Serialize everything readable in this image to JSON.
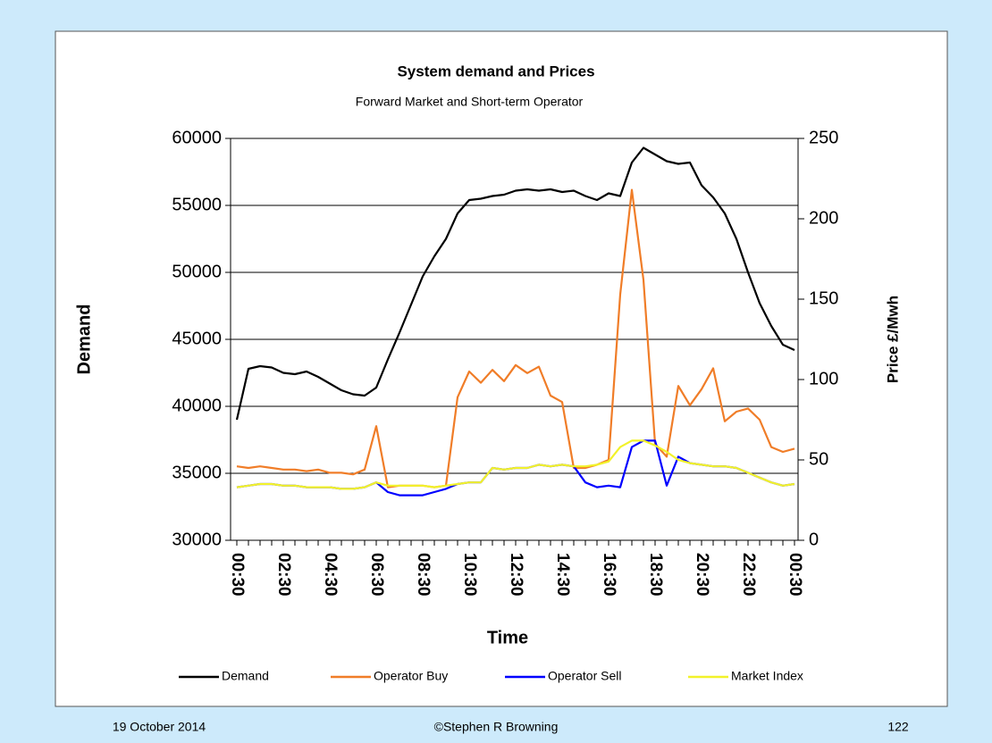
{
  "chart_data": {
    "type": "line",
    "title": "System demand and Prices",
    "subtitle": "Forward Market and Short-term Operator",
    "x_label": "Time",
    "y_label": "Demand",
    "y2_label": "Price £/Mwh",
    "categories": [
      "00:30",
      null,
      null,
      null,
      "02:30",
      null,
      null,
      null,
      "04:30",
      null,
      null,
      null,
      "06:30",
      null,
      null,
      null,
      "08:30",
      null,
      null,
      null,
      "10:30",
      null,
      null,
      null,
      "12:30",
      null,
      null,
      null,
      "14:30",
      null,
      null,
      null,
      "16:30",
      null,
      null,
      null,
      "18:30",
      null,
      null,
      null,
      "20:30",
      null,
      null,
      null,
      "22:30",
      null,
      null,
      null,
      "00:30"
    ],
    "series": [
      {
        "name": "Demand",
        "color": "#000000",
        "values": [
          39000,
          42800,
          43000,
          42900,
          42500,
          42400,
          42600,
          42200,
          41700,
          41200,
          40900,
          40800,
          41400,
          43500,
          45500,
          47600,
          49700,
          51200,
          52500,
          54400,
          55400,
          55500,
          55700,
          55800,
          56100,
          56200,
          56100,
          56200,
          56000,
          56100,
          55700,
          55400,
          55900,
          55700,
          58200,
          59300,
          58800,
          58300,
          58100,
          58200,
          56500,
          55600,
          54400,
          52500,
          50000,
          47700,
          46000,
          44600,
          44200
        ]
      },
      {
        "name": "Operator Buy",
        "color": "#f07d28",
        "axis": "y2",
        "values": [
          46,
          45,
          46,
          45,
          44,
          44,
          43,
          44,
          42,
          42,
          41,
          44,
          71,
          33,
          34,
          34,
          34,
          33,
          34,
          89,
          105,
          98,
          106,
          99,
          109,
          104,
          108,
          90,
          86,
          45,
          45,
          47,
          50,
          153,
          218,
          162,
          60,
          52,
          96,
          84,
          94,
          107,
          74,
          80,
          82,
          75,
          58,
          55,
          57
        ]
      },
      {
        "name": "Operator Sell",
        "color": "#0000ff",
        "axis": "y2",
        "values": [
          33,
          34,
          35,
          35,
          34,
          34,
          33,
          33,
          33,
          32,
          32,
          33,
          36,
          30,
          28,
          28,
          28,
          30,
          32,
          35,
          36,
          36,
          45,
          44,
          45,
          45,
          47,
          46,
          47,
          46,
          36,
          33,
          34,
          33,
          58,
          62,
          62,
          34,
          52,
          48,
          47,
          46,
          46,
          45,
          42,
          39,
          36,
          34,
          35
        ]
      },
      {
        "name": "Market Index",
        "color": "#f2f22a",
        "axis": "y2",
        "values": [
          33,
          34,
          35,
          35,
          34,
          34,
          33,
          33,
          33,
          32,
          32,
          33,
          36,
          34,
          34,
          34,
          34,
          33,
          34,
          35,
          36,
          36,
          45,
          44,
          45,
          45,
          47,
          46,
          47,
          46,
          46,
          47,
          49,
          58,
          62,
          62,
          59,
          55,
          50,
          48,
          47,
          46,
          46,
          45,
          42,
          39,
          36,
          34,
          35
        ]
      }
    ],
    "ylim": [
      30000,
      60000
    ],
    "yticks": [
      30000,
      35000,
      40000,
      45000,
      50000,
      55000,
      60000
    ],
    "y2lim": [
      0,
      250
    ],
    "y2ticks": [
      0,
      50,
      100,
      150,
      200,
      250
    ],
    "grid": true,
    "legend": "bottom"
  },
  "footer": {
    "date": "19 October 2014",
    "author": "©Stephen R Browning",
    "page": "122"
  }
}
